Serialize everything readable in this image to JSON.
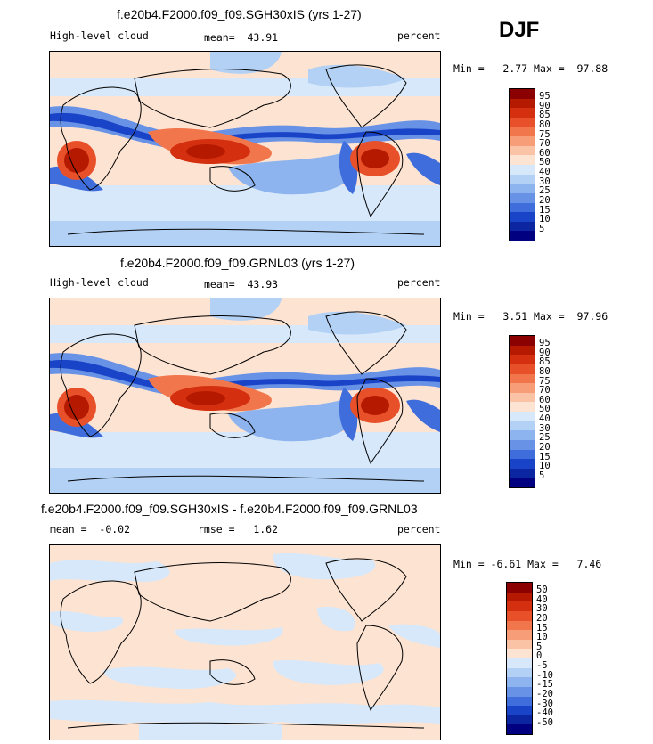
{
  "season": "DJF",
  "panels": [
    {
      "title": "f.e20b4.F2000.f09_f09.SGH30xIS (yrs 1-27)",
      "field": "High-level cloud",
      "mean_label": "mean=",
      "mean_value": "43.91",
      "units": "percent",
      "min_label": "Min =",
      "min_value": "2.77",
      "max_label": "Max =",
      "max_value": "97.88"
    },
    {
      "title": "f.e20b4.F2000.f09_f09.GRNL03 (yrs 1-27)",
      "field": "High-level cloud",
      "mean_label": "mean=",
      "mean_value": "43.93",
      "units": "percent",
      "min_label": "Min =",
      "min_value": "3.51",
      "max_label": "Max =",
      "max_value": "97.96"
    },
    {
      "title": "f.e20b4.F2000.f09_f09.SGH30xIS - f.e20b4.F2000.f09_f09.GRNL03",
      "mean_label": "mean =",
      "mean_value": "-0.02",
      "rmse_label": "rmse =",
      "rmse_value": "1.62",
      "units": "percent",
      "min_label": "Min =",
      "min_value": "-6.61",
      "max_label": "Max =",
      "max_value": "7.46"
    }
  ],
  "colorbars": {
    "absolute": {
      "labels": [
        "95",
        "90",
        "85",
        "80",
        "75",
        "70",
        "60",
        "50",
        "40",
        "30",
        "25",
        "20",
        "15",
        "10",
        "5"
      ],
      "colors": [
        "#8b0000",
        "#b51a00",
        "#d43010",
        "#e8502a",
        "#f2764c",
        "#f79d78",
        "#fbc3a5",
        "#fde3d2",
        "#d6e8fa",
        "#b2d1f5",
        "#8db4ee",
        "#6892e6",
        "#3f6ddc",
        "#1a44c8",
        "#0b26a0",
        "#000080"
      ]
    },
    "difference": {
      "labels": [
        "50",
        "40",
        "30",
        "20",
        "15",
        "10",
        "5",
        "0",
        "-5",
        "-10",
        "-15",
        "-20",
        "-30",
        "-40",
        "-50"
      ],
      "colors": [
        "#8b0000",
        "#b51a00",
        "#d43010",
        "#e8502a",
        "#f2764c",
        "#f79d78",
        "#fbc3a5",
        "#fde3d2",
        "#d6e8fa",
        "#b2d1f5",
        "#8db4ee",
        "#6892e6",
        "#3f6ddc",
        "#1a44c8",
        "#0b26a0",
        "#000080"
      ]
    }
  }
}
